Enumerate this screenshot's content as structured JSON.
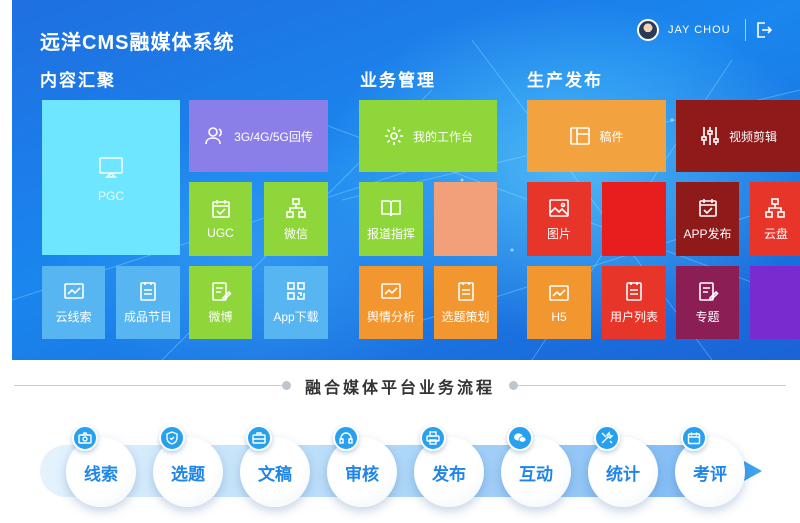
{
  "header": {
    "title": "远洋CMS融媒体系统",
    "user_name": "JAY  CHOU"
  },
  "sections": {
    "content": "内容汇聚",
    "business": "业务管理",
    "publish": "生产发布"
  },
  "tiles": {
    "pgc": "PGC",
    "transmit": "3G/4G/5G回传",
    "ugc": "UGC",
    "wechat": "微信",
    "cloud_search": "云线索",
    "programs": "成品节目",
    "weibo": "微博",
    "app_download": "App下载",
    "my_workbench": "我的工作台",
    "report_command": "报道指挥",
    "opinion": "舆情分析",
    "topic_plan": "选题策划",
    "manuscript": "稿件",
    "video_edit": "视频剪辑",
    "picture": "图片",
    "app_publish": "APP发布",
    "cloud_disk": "云盘",
    "h5": "H5",
    "user_list": "用户列表",
    "special": "专题"
  },
  "flow": {
    "title": "融合媒体平台业务流程",
    "steps": [
      "线索",
      "选题",
      "文稿",
      "审核",
      "发布",
      "互动",
      "统计",
      "考评"
    ],
    "icons": [
      "camera-icon",
      "shield-icon",
      "briefcase-icon",
      "headset-icon",
      "printer-icon",
      "wechat-icon",
      "tools-icon",
      "calendar-icon"
    ]
  },
  "colors": {
    "banner_blue": "#1a7be8",
    "cyan": "#6fe6ff",
    "purple": "#8a7fe8",
    "green": "#8ed63a",
    "blue_light": "#57b6f2",
    "orange": "#f2962f",
    "salmon": "#f2a07a",
    "red": "#e8352a",
    "dark_red": "#8e1a1a",
    "magenta": "#8c1e56",
    "violet": "#7a2bd0",
    "flow_blue": "#1f86e8"
  }
}
